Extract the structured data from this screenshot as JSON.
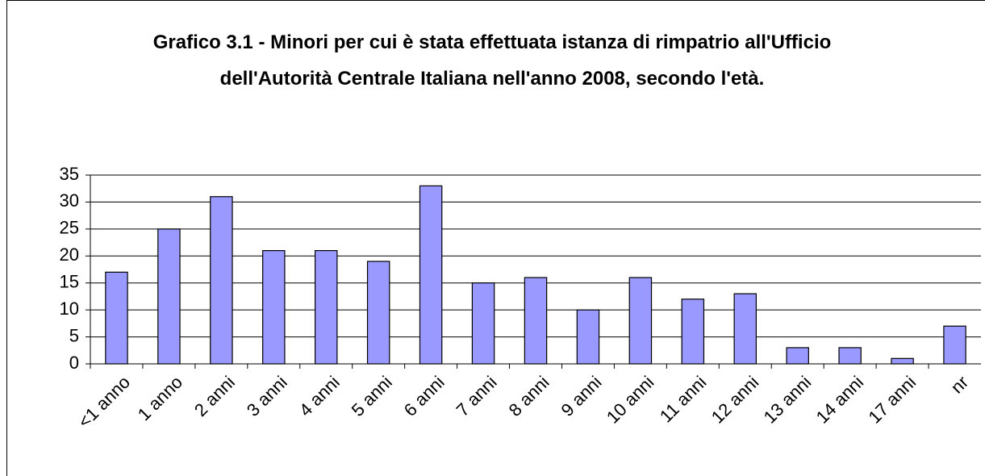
{
  "chart_data": {
    "type": "bar",
    "title": "Grafico 3.1 - Minori per cui è stata effettuata istanza di rimpatrio all'Ufficio dell'Autorità Centrale Italiana nell'anno 2008, secondo l'età.",
    "categories": [
      "<1 anno",
      "1 anno",
      "2 anni",
      "3 anni",
      "4 anni",
      "5 anni",
      "6 anni",
      "7 anni",
      "8 anni",
      "9 anni",
      "10 anni",
      "11 anni",
      "12 anni",
      "13 anni",
      "14 anni",
      "17 anni",
      "nr"
    ],
    "values": [
      17,
      25,
      31,
      21,
      21,
      19,
      33,
      15,
      16,
      10,
      16,
      12,
      13,
      3,
      3,
      1,
      7
    ],
    "color": "#9999ff",
    "ylim": [
      0,
      35
    ],
    "yticks": [
      0,
      5,
      10,
      15,
      20,
      25,
      30,
      35
    ],
    "grid": true
  }
}
